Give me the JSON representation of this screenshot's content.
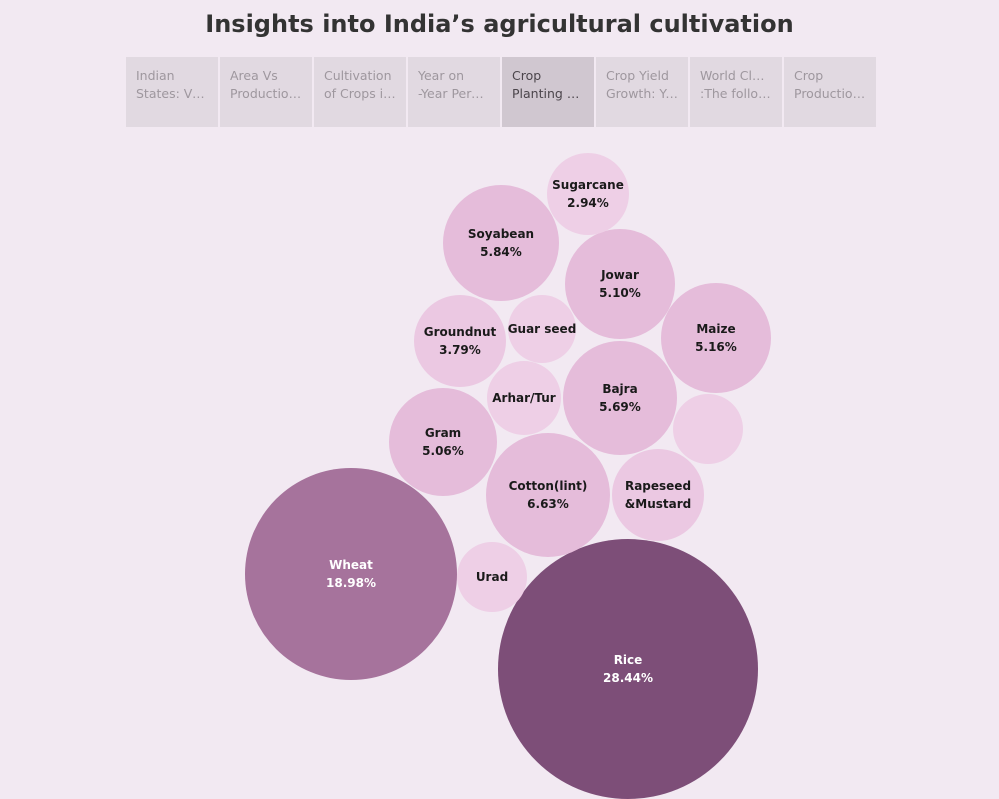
{
  "title": "Insights into India’s agricultural cultivation",
  "tabs": [
    {
      "line1": "Indian",
      "line2": "States: Vis..",
      "active": false
    },
    {
      "line1": "Area Vs",
      "line2": "Production ..",
      "active": false
    },
    {
      "line1": "Cultivation",
      "line2": "of Crops in ..",
      "active": false
    },
    {
      "line1": "Year on",
      "line2": "-Year Perce..",
      "active": false
    },
    {
      "line1": "Crop",
      "line2": "Planting Pe..",
      "active": true
    },
    {
      "line1": "Crop Yield",
      "line2": "Growth: Ye..",
      "active": false
    },
    {
      "line1": "World Cloud",
      "line2": ":The follow..",
      "active": false
    },
    {
      "line1": "Crop",
      "line2": "Production ..",
      "active": false
    }
  ],
  "colors": {
    "dark": "#7d4e78",
    "medium": "#a6739c",
    "light": "#e5bcda",
    "lighter": "#ebc8e2",
    "pale": "#eecfe6",
    "background": "#f2e9f2"
  },
  "chart_data": {
    "type": "packed-bubble",
    "series": [
      {
        "name": "Rice",
        "value": 28.44,
        "label": "28.44%"
      },
      {
        "name": "Wheat",
        "value": 18.98,
        "label": "18.98%"
      },
      {
        "name": "Cotton(lint)",
        "value": 6.63,
        "label": "6.63%"
      },
      {
        "name": "Soyabean",
        "value": 5.84,
        "label": "5.84%"
      },
      {
        "name": "Bajra",
        "value": 5.69,
        "label": "5.69%"
      },
      {
        "name": "Maize",
        "value": 5.16,
        "label": "5.16%"
      },
      {
        "name": "Jowar",
        "value": 5.1,
        "label": "5.10%"
      },
      {
        "name": "Gram",
        "value": 5.06,
        "label": "5.06%"
      },
      {
        "name": "Groundnut",
        "value": 3.79,
        "label": "3.79%"
      },
      {
        "name": "Rapeseed &Mustard",
        "value": null,
        "label": ""
      },
      {
        "name": "Sugarcane",
        "value": 2.94,
        "label": "2.94%"
      },
      {
        "name": "Arhar/Tur",
        "value": null,
        "label": ""
      },
      {
        "name": "Guar seed",
        "value": null,
        "label": ""
      },
      {
        "name": "Urad",
        "value": null,
        "label": ""
      },
      {
        "name": "",
        "value": null,
        "label": ""
      }
    ]
  }
}
